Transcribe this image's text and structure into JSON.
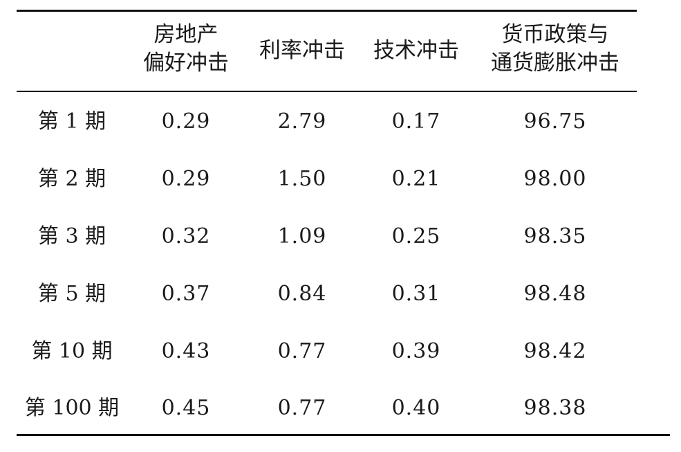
{
  "table": {
    "headers": [
      {
        "lines": [
          ""
        ]
      },
      {
        "lines": [
          "房地产",
          "偏好冲击"
        ]
      },
      {
        "lines": [
          "利率冲击"
        ]
      },
      {
        "lines": [
          "技术冲击"
        ]
      },
      {
        "lines": [
          "货币政策与",
          "通货膨胀冲击"
        ]
      }
    ],
    "rows": [
      {
        "label": "第 1 期",
        "values": [
          "0.29",
          "2.79",
          "0.17",
          "96.75"
        ]
      },
      {
        "label": "第 2 期",
        "values": [
          "0.29",
          "1.50",
          "0.21",
          "98.00"
        ]
      },
      {
        "label": "第 3 期",
        "values": [
          "0.32",
          "1.09",
          "0.25",
          "98.35"
        ]
      },
      {
        "label": "第 5 期",
        "values": [
          "0.37",
          "0.84",
          "0.31",
          "98.48"
        ]
      },
      {
        "label": "第 10 期",
        "values": [
          "0.43",
          "0.77",
          "0.39",
          "98.42"
        ]
      },
      {
        "label": "第 100 期",
        "values": [
          "0.45",
          "0.77",
          "0.40",
          "98.38"
        ]
      }
    ]
  }
}
